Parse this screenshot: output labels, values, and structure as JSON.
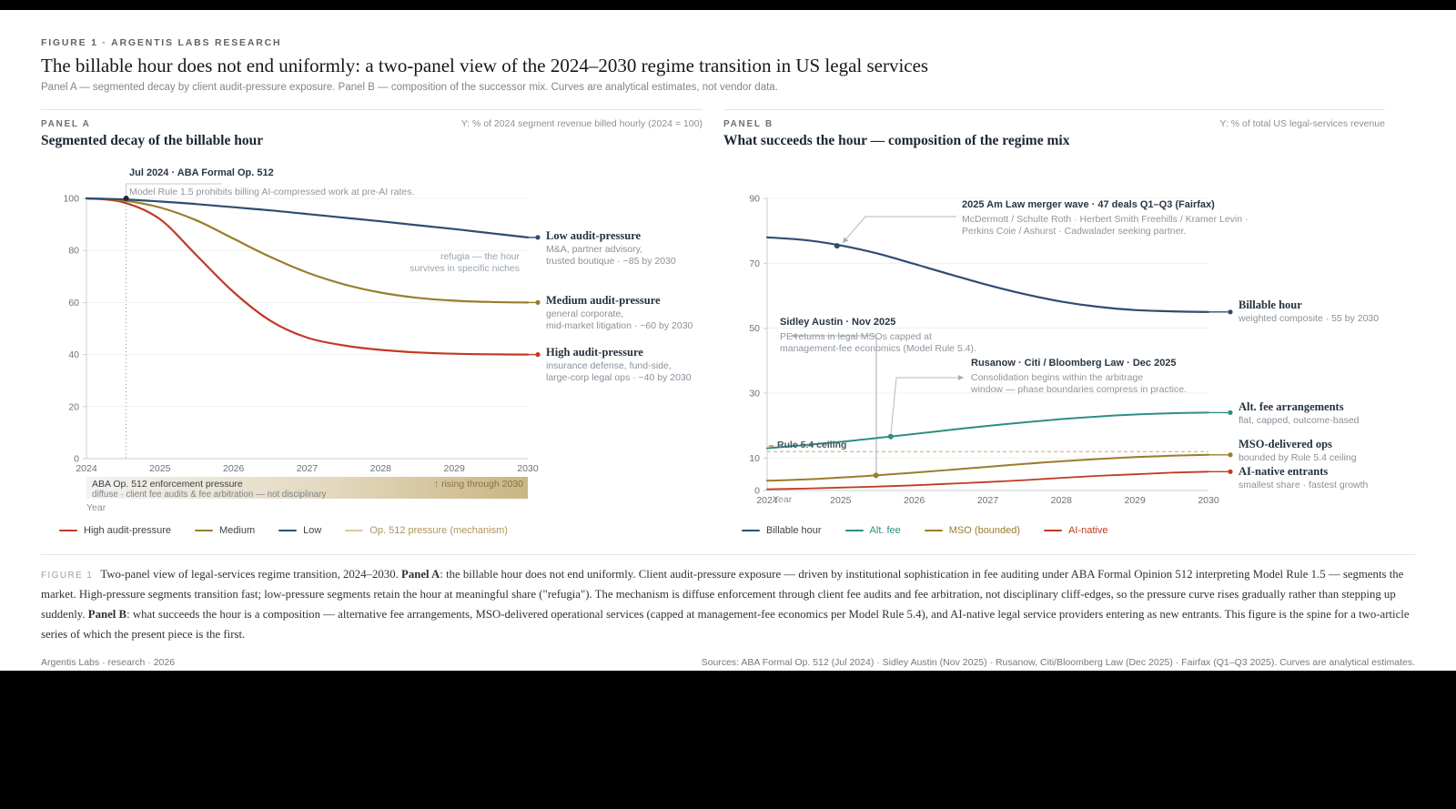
{
  "header": {
    "kicker": "FIGURE 1 · ARGENTIS LABS RESEARCH",
    "title": "The billable hour does not end uniformly: a two-panel view of the 2024–2030 regime transition in US legal services",
    "subtitle": "Panel A — segmented decay by client audit-pressure exposure. Panel B — composition of the successor mix. Curves are analytical estimates, not vendor data."
  },
  "panel_a": {
    "label": "PANEL A",
    "title": "Segmented decay of the billable hour",
    "y_axis_note": "Y: % of 2024 segment revenue billed hourly (2024 = 100)",
    "x_axis_label": "Year",
    "annotation": {
      "title": "Jul 2024 · ABA Formal Op. 512",
      "body": "Model Rule 1.5 prohibits billing AI-compressed work at pre-AI rates."
    },
    "refugia": "refugia — the hour\nsurvives in specific niches",
    "series_labels": [
      {
        "title": "Low audit-pressure",
        "desc": "M&A, partner advisory,\ntrusted boutique · ~85 by 2030"
      },
      {
        "title": "Medium audit-pressure",
        "desc": "general corporate,\nmid-market litigation · ~60 by 2030"
      },
      {
        "title": "High audit-pressure",
        "desc": "insurance defense, fund-side,\nlarge-corp legal ops · ~40 by 2030"
      }
    ],
    "band": {
      "title": "ABA Op. 512 enforcement pressure",
      "subtitle": "diffuse · client fee audits & fee arbitration — not disciplinary",
      "trend": "↑ rising through 2030"
    },
    "legend": [
      {
        "label": "High audit-pressure",
        "color": "#c03a22",
        "text": "#3d434a"
      },
      {
        "label": "Medium",
        "color": "#9a7d2c",
        "text": "#3d434a"
      },
      {
        "label": "Low",
        "color": "#2d4d70",
        "text": "#3d434a"
      },
      {
        "label": "Op. 512 pressure (mechanism)",
        "color": "#d9c9a4",
        "text": "#b0945c"
      }
    ]
  },
  "panel_b": {
    "label": "PANEL B",
    "title": "What succeeds the hour — composition of the regime mix",
    "y_axis_note": "Y: % of total US legal-services revenue",
    "x_axis_label": "Year",
    "ceiling_label": "Rule 5.4 ceiling",
    "annotations": {
      "merger": {
        "title": "2025 Am Law merger wave · 47 deals Q1–Q3 (Fairfax)",
        "body": "McDermott / Schulte Roth · Herbert Smith Freehills / Kramer Levin ·\nPerkins Coie / Ashurst · Cadwalader seeking partner."
      },
      "sidley": {
        "title": "Sidley Austin · Nov 2025",
        "body": "PE returns in legal MSOs capped at\nmanagement-fee economics (Model Rule 5.4)."
      },
      "rusanow": {
        "title": "Rusanow · Citi / Bloomberg Law · Dec 2025",
        "body": "Consolidation begins within the arbitrage\nwindow — phase boundaries compress in practice."
      }
    },
    "series_labels": [
      {
        "title": "Billable hour",
        "desc": "weighted composite · 55 by 2030"
      },
      {
        "title": "Alt. fee arrangements",
        "desc": "flat, capped, outcome-based"
      },
      {
        "title": "MSO-delivered ops",
        "desc": "bounded by Rule 5.4 ceiling"
      },
      {
        "title": "AI-native entrants",
        "desc": "smallest share · fastest growth"
      }
    ],
    "legend": [
      {
        "label": "Billable hour",
        "color": "#2d4d70",
        "text": "#3d434a"
      },
      {
        "label": "Alt. fee",
        "color": "#2f8e83",
        "text": "#2f8e83"
      },
      {
        "label": "MSO (bounded)",
        "color": "#9a7d2c",
        "text": "#9a7d2c"
      },
      {
        "label": "AI-native",
        "color": "#c03a22",
        "text": "#c03a22"
      }
    ]
  },
  "caption": {
    "label": "FIGURE 1",
    "seg1": "Two-panel view of legal-services regime transition, 2024–2030. ",
    "bold1": "Panel A",
    "seg2": ": the billable hour does not end uniformly. Client audit-pressure exposure — driven by institutional sophistication in fee auditing under ABA Formal Opinion 512 interpreting Model Rule 1.5 — segments the market. High-pressure segments transition fast; low-pressure segments retain the hour at meaningful share (\"refugia\"). The mechanism is diffuse enforcement through client fee audits and fee arbitration, not disciplinary cliff-edges, so the pressure curve rises gradually rather than stepping up suddenly. ",
    "bold2": "Panel B",
    "seg3": ": what succeeds the hour is a composition — alternative fee arrangements, MSO-delivered operational services (capped at management-fee economics per Model Rule 5.4), and AI-native legal service providers entering as new entrants. This figure is the spine for a two-article series of which the present piece is the first."
  },
  "footer": {
    "left": "Argentis Labs · research · 2026",
    "right": "Sources: ABA Formal Op. 512 (Jul 2024) · Sidley Austin (Nov 2025) · Rusanow, Citi/Bloomberg Law (Dec 2025) · Fairfax (Q1–Q3 2025). Curves are analytical estimates."
  },
  "chart_data": [
    {
      "panel": "A",
      "type": "line",
      "title": "Segmented decay of the billable hour",
      "xlabel": "Year",
      "ylabel": "% of 2024 segment revenue billed hourly (2024 = 100)",
      "xlim": [
        2024,
        2030
      ],
      "ylim": [
        0,
        100
      ],
      "xticks": [
        2024,
        2025,
        2026,
        2027,
        2028,
        2029,
        2030
      ],
      "yticks": [
        0,
        20,
        40,
        60,
        80,
        100
      ],
      "grid": "horizontal",
      "legend_position": "bottom",
      "x": [
        2024,
        2024.5,
        2025,
        2025.5,
        2026,
        2026.5,
        2027,
        2027.5,
        2028,
        2028.5,
        2029,
        2029.5,
        2030
      ],
      "series": [
        {
          "name": "High audit-pressure",
          "color": "#c03a22",
          "width": 2.2,
          "values": [
            100,
            98.5,
            92,
            78,
            64,
            53,
            46.5,
            43.5,
            41.8,
            40.8,
            40.3,
            40.1,
            40
          ]
        },
        {
          "name": "Medium audit-pressure",
          "color": "#9a7d2c",
          "width": 2.2,
          "values": [
            100,
            99.2,
            96.5,
            91.5,
            84.5,
            77.5,
            71.5,
            67,
            63.8,
            61.8,
            60.7,
            60.2,
            60
          ]
        },
        {
          "name": "Low audit-pressure",
          "color": "#2d4d70",
          "width": 2.2,
          "values": [
            100,
            99.6,
            98.8,
            97.8,
            96.6,
            95.4,
            94,
            92.6,
            91.2,
            89.7,
            88.2,
            86.6,
            85
          ]
        }
      ],
      "markers": [
        {
          "x": 2024.54,
          "y": 100,
          "color": "#1f2937",
          "note": "Jul 2024 · ABA Formal Op. 512 effective"
        }
      ],
      "mechanism_band": {
        "from": 2024,
        "to": 2030,
        "direction": "rising through 2030"
      }
    },
    {
      "panel": "B",
      "type": "line",
      "title": "What succeeds the hour — composition of the regime mix",
      "xlabel": "Year",
      "ylabel": "% of total US legal-services revenue",
      "xlim": [
        2024,
        2030
      ],
      "ylim": [
        0,
        90
      ],
      "xticks": [
        2024,
        2025,
        2026,
        2027,
        2028,
        2029,
        2030
      ],
      "yticks": [
        0,
        10,
        30,
        50,
        70,
        90
      ],
      "grid": "horizontal",
      "legend_position": "bottom",
      "x": [
        2024,
        2024.5,
        2025,
        2025.5,
        2026,
        2026.5,
        2027,
        2027.5,
        2028,
        2028.5,
        2029,
        2029.5,
        2030
      ],
      "series": [
        {
          "name": "Billable hour",
          "color": "#2d4d70",
          "width": 2.2,
          "values": [
            78,
            77.2,
            75.5,
            73,
            69.8,
            66.5,
            63.3,
            60.5,
            58.2,
            56.6,
            55.6,
            55.2,
            55
          ]
        },
        {
          "name": "Alt. fee",
          "color": "#2f8e83",
          "width": 2,
          "values": [
            13,
            14,
            15,
            16.2,
            17.4,
            18.7,
            19.9,
            21,
            22,
            22.8,
            23.4,
            23.8,
            24
          ]
        },
        {
          "name": "MSO (bounded)",
          "color": "#9a7d2c",
          "width": 2,
          "values": [
            3,
            3.4,
            4,
            4.7,
            5.5,
            6.4,
            7.3,
            8.2,
            9,
            9.7,
            10.3,
            10.7,
            11
          ]
        },
        {
          "name": "AI-native",
          "color": "#c03a22",
          "width": 1.8,
          "values": [
            0.4,
            0.6,
            0.9,
            1.2,
            1.6,
            2.1,
            2.6,
            3.2,
            3.9,
            4.5,
            5,
            5.5,
            5.8
          ]
        }
      ],
      "markers": [
        {
          "x": 2024.95,
          "y": 75.4,
          "color": "#2d4d70",
          "note": "2025 Am Law merger wave"
        },
        {
          "x": 2025.68,
          "y": 16.6,
          "color": "#2f8e83",
          "note": "Rusanow · Citi / Bloomberg Law · Dec 2025"
        },
        {
          "x": 2025.48,
          "y": 4.65,
          "color": "#9a7d2c",
          "note": "Sidley Austin · Nov 2025"
        }
      ],
      "ceiling": {
        "value": 12,
        "label": "Rule 5.4 ceiling",
        "color": "#c9a76a"
      }
    }
  ]
}
